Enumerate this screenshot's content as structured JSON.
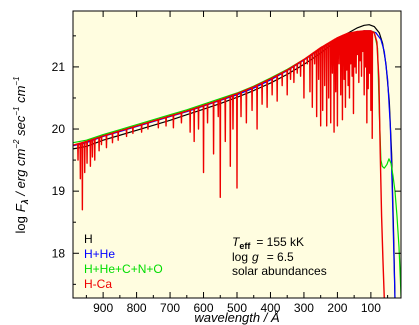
{
  "chart_data": {
    "type": "line",
    "title": "",
    "xlabel": "wavelength / Å",
    "ylabel": "log F_λ / erg cm^-2 sec^-1 cm^-1",
    "xlim": [
      990,
      10
    ],
    "ylim": [
      17.28,
      21.9
    ],
    "x_ticks": [
      900,
      800,
      700,
      600,
      500,
      400,
      300,
      200,
      100
    ],
    "y_ticks": [
      18,
      19,
      20,
      21
    ],
    "grid": false,
    "legend_position": "bottom-left",
    "background": "#fffde0",
    "series": [
      {
        "name": "H",
        "color": "#000000",
        "points": [
          [
            990,
            19.68
          ],
          [
            950,
            19.72
          ],
          [
            900,
            19.82
          ],
          [
            850,
            19.9
          ],
          [
            800,
            19.98
          ],
          [
            750,
            20.06
          ],
          [
            700,
            20.14
          ],
          [
            650,
            20.23
          ],
          [
            600,
            20.32
          ],
          [
            550,
            20.41
          ],
          [
            500,
            20.51
          ],
          [
            450,
            20.62
          ],
          [
            400,
            20.74
          ],
          [
            350,
            20.88
          ],
          [
            300,
            21.04
          ],
          [
            250,
            21.22
          ],
          [
            200,
            21.43
          ],
          [
            170,
            21.54
          ],
          [
            140,
            21.63
          ],
          [
            120,
            21.67
          ],
          [
            105,
            21.68
          ],
          [
            90,
            21.65
          ],
          [
            75,
            21.55
          ],
          [
            65,
            21.38
          ],
          [
            55,
            21.05
          ],
          [
            45,
            20.45
          ],
          [
            38,
            19.6
          ],
          [
            32,
            18.3
          ],
          [
            28,
            17.28
          ]
        ]
      },
      {
        "name": "H+He",
        "color": "#0000ff",
        "points": [
          [
            990,
            19.73
          ],
          [
            950,
            19.78
          ],
          [
            900,
            19.88
          ],
          [
            850,
            19.96
          ],
          [
            800,
            20.04
          ],
          [
            750,
            20.12
          ],
          [
            700,
            20.2
          ],
          [
            650,
            20.28
          ],
          [
            600,
            20.37
          ],
          [
            550,
            20.46
          ],
          [
            500,
            20.55
          ],
          [
            450,
            20.66
          ],
          [
            400,
            20.79
          ],
          [
            350,
            20.94
          ],
          [
            300,
            21.11
          ],
          [
            250,
            21.29
          ],
          [
            200,
            21.45
          ],
          [
            170,
            21.52
          ],
          [
            140,
            21.56
          ],
          [
            120,
            21.58
          ],
          [
            100,
            21.58
          ],
          [
            85,
            21.55
          ],
          [
            70,
            21.44
          ],
          [
            60,
            21.25
          ],
          [
            50,
            20.8
          ],
          [
            42,
            20.05
          ],
          [
            36,
            19.0
          ],
          [
            31,
            17.9
          ],
          [
            28,
            17.28
          ]
        ]
      },
      {
        "name": "H+He+C+N+O",
        "color": "#00dd00",
        "points": [
          [
            990,
            19.78
          ],
          [
            950,
            19.82
          ],
          [
            900,
            19.91
          ],
          [
            850,
            19.99
          ],
          [
            800,
            20.07
          ],
          [
            750,
            20.15
          ],
          [
            700,
            20.23
          ],
          [
            650,
            20.31
          ],
          [
            600,
            20.4
          ],
          [
            550,
            20.49
          ],
          [
            500,
            20.58
          ],
          [
            450,
            20.69
          ],
          [
            400,
            20.82
          ],
          [
            350,
            20.96
          ],
          [
            300,
            21.12
          ],
          [
            250,
            21.3
          ],
          [
            200,
            21.45
          ],
          [
            170,
            21.52
          ],
          [
            140,
            21.56
          ],
          [
            120,
            21.57
          ],
          [
            100,
            21.57
          ],
          [
            90,
            21.56
          ],
          [
            80,
            21.3
          ],
          [
            75,
            20.3
          ],
          [
            70,
            19.5
          ],
          [
            66,
            19.4
          ],
          [
            60,
            19.37
          ],
          [
            52,
            19.43
          ],
          [
            46,
            19.52
          ],
          [
            40,
            19.45
          ],
          [
            34,
            19.25
          ],
          [
            28,
            19.0
          ],
          [
            22,
            18.6
          ],
          [
            16,
            18.1
          ],
          [
            12,
            17.6
          ],
          [
            10,
            17.3
          ]
        ]
      },
      {
        "name": "H-Ca",
        "color": "#ee0000",
        "points": [
          [
            990,
            19.74
          ],
          [
            950,
            19.8
          ],
          [
            900,
            19.89
          ],
          [
            850,
            19.97
          ],
          [
            800,
            20.05
          ],
          [
            750,
            20.13
          ],
          [
            700,
            20.21
          ],
          [
            650,
            20.29
          ],
          [
            600,
            20.38
          ],
          [
            550,
            20.47
          ],
          [
            500,
            20.57
          ],
          [
            450,
            20.68
          ],
          [
            400,
            20.81
          ],
          [
            350,
            20.95
          ],
          [
            300,
            21.12
          ],
          [
            250,
            21.31
          ],
          [
            200,
            21.47
          ],
          [
            170,
            21.54
          ],
          [
            140,
            21.57
          ],
          [
            120,
            21.58
          ],
          [
            100,
            21.58
          ],
          [
            90,
            21.55
          ],
          [
            82,
            21.4
          ],
          [
            76,
            20.8
          ],
          [
            72,
            19.6
          ],
          [
            68,
            18.6
          ],
          [
            64,
            17.9
          ],
          [
            60,
            17.28
          ]
        ],
        "absorption_lines": [
          [
            975,
            19.5
          ],
          [
            968,
            19.2
          ],
          [
            962,
            18.7
          ],
          [
            955,
            19.3
          ],
          [
            948,
            19.45
          ],
          [
            938,
            19.4
          ],
          [
            932,
            19.55
          ],
          [
            925,
            19.5
          ],
          [
            912,
            19.65
          ],
          [
            905,
            19.75
          ],
          [
            890,
            19.7
          ],
          [
            872,
            19.78
          ],
          [
            855,
            19.82
          ],
          [
            830,
            19.88
          ],
          [
            811,
            19.93
          ],
          [
            785,
            19.95
          ],
          [
            766,
            20.0
          ],
          [
            735,
            20.02
          ],
          [
            712,
            20.05
          ],
          [
            690,
            20.02
          ],
          [
            666,
            20.1
          ],
          [
            640,
            19.95
          ],
          [
            628,
            19.8
          ],
          [
            615,
            20.0
          ],
          [
            600,
            19.3
          ],
          [
            588,
            20.1
          ],
          [
            570,
            19.6
          ],
          [
            556,
            20.2
          ],
          [
            550,
            18.9
          ],
          [
            535,
            19.8
          ],
          [
            520,
            19.4
          ],
          [
            512,
            20.0
          ],
          [
            500,
            19.05
          ],
          [
            488,
            20.2
          ],
          [
            472,
            20.1
          ],
          [
            455,
            20.3
          ],
          [
            440,
            20.0
          ],
          [
            425,
            20.4
          ],
          [
            410,
            20.35
          ],
          [
            395,
            20.55
          ],
          [
            380,
            20.45
          ],
          [
            365,
            20.7
          ],
          [
            350,
            20.55
          ],
          [
            340,
            20.8
          ],
          [
            330,
            20.75
          ],
          [
            320,
            20.9
          ],
          [
            310,
            20.85
          ],
          [
            300,
            20.5
          ],
          [
            290,
            21.05
          ],
          [
            282,
            20.6
          ],
          [
            275,
            20.35
          ],
          [
            268,
            21.05
          ],
          [
            262,
            20.2
          ],
          [
            256,
            20.8
          ],
          [
            250,
            20.05
          ],
          [
            244,
            20.3
          ],
          [
            238,
            20.7
          ],
          [
            232,
            20.05
          ],
          [
            226,
            20.5
          ],
          [
            220,
            20.1
          ],
          [
            215,
            20.9
          ],
          [
            210,
            19.95
          ],
          [
            205,
            20.6
          ],
          [
            200,
            20.05
          ],
          [
            195,
            21.05
          ],
          [
            190,
            20.55
          ],
          [
            185,
            20.15
          ],
          [
            180,
            20.8
          ],
          [
            176,
            20.35
          ],
          [
            172,
            20.95
          ],
          [
            168,
            20.7
          ],
          [
            164,
            20.5
          ],
          [
            160,
            21.05
          ],
          [
            156,
            20.85
          ],
          [
            152,
            20.25
          ],
          [
            148,
            21.0
          ],
          [
            144,
            20.9
          ],
          [
            140,
            21.2
          ],
          [
            136,
            20.75
          ],
          [
            132,
            21.1
          ],
          [
            128,
            20.85
          ],
          [
            124,
            21.25
          ],
          [
            120,
            20.55
          ],
          [
            116,
            21.0
          ],
          [
            112,
            20.1
          ],
          [
            108,
            20.65
          ],
          [
            104,
            20.9
          ],
          [
            100,
            20.3
          ],
          [
            96,
            19.85
          ]
        ]
      }
    ],
    "legend": [
      {
        "label": "H",
        "color": "#000000"
      },
      {
        "label": "H+He",
        "color": "#0000ff"
      },
      {
        "label": "H+He+C+N+O",
        "color": "#00dd00"
      },
      {
        "label": "H-Ca",
        "color": "#ee0000"
      }
    ],
    "annotations": {
      "teff_symbol": "T",
      "teff_sub": "eff",
      "teff_value": "= 155 kK",
      "logg_prefix": "log",
      "logg_symbol": "g",
      "logg_value": "= 6.5",
      "abundances": "solar abundances"
    },
    "ylabel_parts": {
      "log": "log",
      "F": "F",
      "lambda": "λ",
      "slash": " / erg cm",
      "exp1": "−2",
      "sec": " sec",
      "exp2": "−1",
      "cm": " cm",
      "exp3": "−1"
    }
  }
}
